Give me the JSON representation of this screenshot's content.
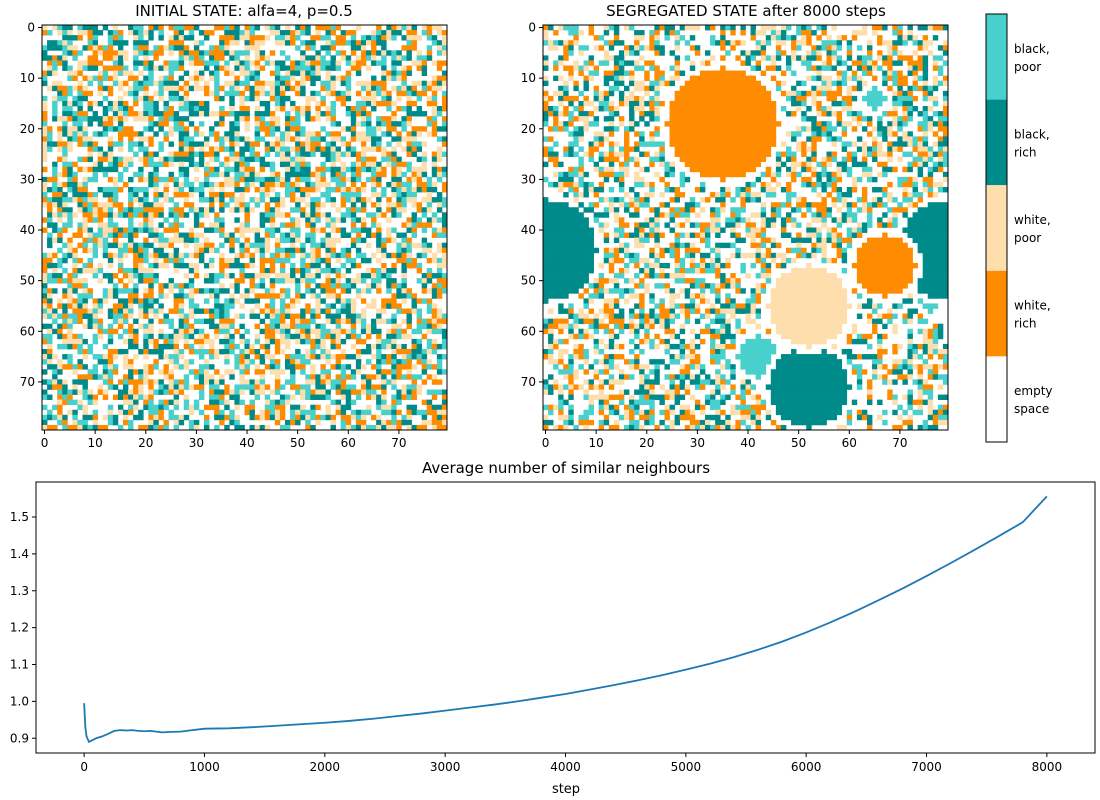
{
  "colors": {
    "empty": "#ffffff",
    "white_rich": "#ff8c00",
    "white_poor": "#ffdead",
    "black_rich": "#008b8b",
    "black_poor": "#48d1cc",
    "line": "#1f77b4"
  },
  "chart_data": [
    {
      "type": "heatmap",
      "title": "INITIAL STATE:  alfa=4, p=0.5",
      "grid_size": [
        80,
        80
      ],
      "x_ticks": [
        "0",
        "10",
        "20",
        "30",
        "40",
        "50",
        "60",
        "70"
      ],
      "y_ticks": [
        "0",
        "10",
        "20",
        "30",
        "40",
        "50",
        "60",
        "70"
      ],
      "categories": [
        "empty space",
        "white, rich",
        "white, poor",
        "black, rich",
        "black, poor"
      ],
      "pattern": "random mixture of all categories"
    },
    {
      "type": "heatmap",
      "title": "SEGREGATED STATE  after 8000 steps",
      "grid_size": [
        80,
        80
      ],
      "x_ticks": [
        "0",
        "10",
        "20",
        "30",
        "40",
        "50",
        "60",
        "70"
      ],
      "y_ticks": [
        "0",
        "10",
        "20",
        "30",
        "40",
        "50",
        "60",
        "70"
      ],
      "categories": [
        "empty space",
        "white, rich",
        "white, poor",
        "black, rich",
        "black, poor"
      ],
      "clusters": [
        {
          "category": "white, rich",
          "center": [
            35,
            19
          ],
          "radius": 11
        },
        {
          "category": "white, rich",
          "center": [
            67,
            47
          ],
          "radius": 6
        },
        {
          "category": "white, poor",
          "center": [
            52,
            55
          ],
          "radius": 8
        },
        {
          "category": "black, rich",
          "center": [
            0,
            44
          ],
          "radius": 10
        },
        {
          "category": "black, rich",
          "center": [
            80,
            44
          ],
          "radius": 10
        },
        {
          "category": "black, rich",
          "center": [
            52,
            71
          ],
          "radius": 8
        },
        {
          "category": "black, poor",
          "center": [
            42,
            65
          ],
          "radius": 4
        },
        {
          "category": "black, poor",
          "center": [
            65,
            14
          ],
          "radius": 2
        },
        {
          "category": "black, poor",
          "center": [
            76,
            54
          ],
          "radius": 2
        }
      ]
    },
    {
      "type": "colorbar",
      "labels": [
        [
          "black,",
          "poor"
        ],
        [
          "black,",
          "rich"
        ],
        [
          "white,",
          "poor"
        ],
        [
          "white,",
          "rich"
        ],
        [
          "empty",
          "space"
        ]
      ]
    },
    {
      "type": "line",
      "title": "Average number of similar neighbours",
      "xlabel": "step",
      "ylabel": "",
      "xlim": [
        -400,
        8400
      ],
      "ylim": [
        0.86,
        1.595
      ],
      "x_ticks": [
        0,
        1000,
        2000,
        3000,
        4000,
        5000,
        6000,
        7000,
        8000
      ],
      "y_ticks": [
        0.9,
        1.0,
        1.1,
        1.2,
        1.3,
        1.4,
        1.5
      ],
      "series": [
        {
          "x": [
            0,
            10,
            20,
            40,
            70,
            100,
            150,
            200,
            250,
            300,
            350,
            400,
            450,
            500,
            550,
            600,
            650,
            700,
            800,
            900,
            1000,
            1200,
            1400,
            1600,
            1800,
            2000,
            2200,
            2400,
            2600,
            2800,
            3000,
            3200,
            3400,
            3600,
            3800,
            4000,
            4200,
            4400,
            4600,
            4800,
            5000,
            5200,
            5400,
            5600,
            5800,
            6000,
            6200,
            6400,
            6600,
            6800,
            7000,
            7200,
            7400,
            7600,
            7800,
            8000
          ],
          "y": [
            0.995,
            0.93,
            0.905,
            0.89,
            0.895,
            0.9,
            0.905,
            0.912,
            0.92,
            0.922,
            0.921,
            0.922,
            0.92,
            0.919,
            0.92,
            0.918,
            0.916,
            0.917,
            0.918,
            0.922,
            0.926,
            0.927,
            0.93,
            0.934,
            0.938,
            0.942,
            0.947,
            0.953,
            0.96,
            0.967,
            0.975,
            0.983,
            0.991,
            1.0,
            1.01,
            1.02,
            1.032,
            1.044,
            1.057,
            1.071,
            1.086,
            1.102,
            1.12,
            1.14,
            1.162,
            1.187,
            1.214,
            1.243,
            1.274,
            1.306,
            1.34,
            1.375,
            1.411,
            1.448,
            1.486,
            1.556
          ]
        }
      ]
    }
  ]
}
